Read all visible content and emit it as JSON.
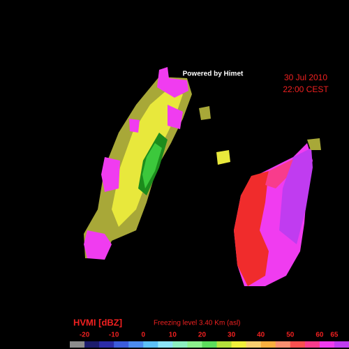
{
  "header": {
    "credit": "Powered by Himet",
    "date": "30 Jul 2010",
    "time": "22:00 CEST"
  },
  "footer": {
    "product": "HVMI [dBZ]",
    "freezing_level": "Freezing level  3.40 Km (asl)"
  },
  "colorbar": {
    "lim": [
      -25,
      70
    ],
    "ticks": [
      -20,
      -10,
      0,
      10,
      20,
      30,
      40,
      50,
      60,
      65
    ],
    "colors": [
      "#8c8c8c",
      "#1c1c6c",
      "#2c2ca8",
      "#3c5cdc",
      "#4c8cf0",
      "#5cc0f8",
      "#8ce4f8",
      "#8cf0c0",
      "#8cf08c",
      "#5cdc5c",
      "#b4e03c",
      "#f0f03c",
      "#f8d070",
      "#f8b040",
      "#f89070",
      "#f85050",
      "#f83c8c",
      "#f03cf0",
      "#c03cf0"
    ]
  }
}
